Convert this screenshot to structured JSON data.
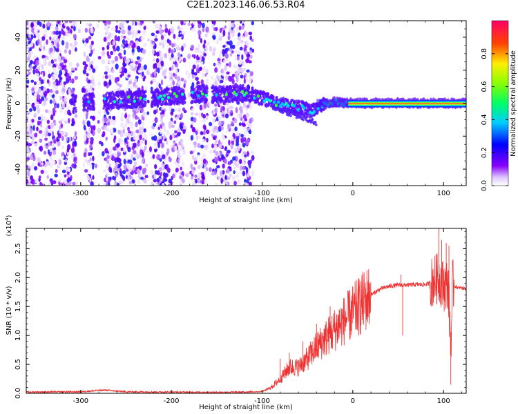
{
  "title": "C2E1.2023.146.06.53.R04",
  "chart_data": [
    {
      "type": "heatmap",
      "xlabel": "Height of straight line (km)",
      "ylabel": "Frequency (Hz)",
      "xlim": [
        -360,
        125
      ],
      "ylim": [
        -50,
        50
      ],
      "x_ticks": [
        "-300",
        "-200",
        "-100",
        "0",
        "100"
      ],
      "y_ticks": [
        "-40",
        "-20",
        "0",
        "20",
        "40"
      ],
      "colorbar": {
        "label": "Normalized spectral amplitude",
        "range": [
          0,
          1
        ],
        "ticks": [
          "0.0",
          "0.2",
          "0.4",
          "0.6",
          "0.8"
        ],
        "colors": [
          "#ffffff",
          "#7f00ff",
          "#0000ff",
          "#00ffff",
          "#00ff00",
          "#ffff00",
          "#ff0000",
          "#ff0066"
        ]
      },
      "noise_region": [
        -360,
        -120
      ],
      "gaps": [
        [
          -305,
          -297
        ],
        [
          -285,
          -275
        ],
        [
          -228,
          -222
        ],
        [
          -185,
          -178
        ],
        [
          -160,
          -155
        ]
      ],
      "trace": [
        {
          "x": -300,
          "y": 0
        },
        {
          "x": -280,
          "y": 1
        },
        {
          "x": -230,
          "y": 3
        },
        {
          "x": -185,
          "y": 5
        },
        {
          "x": -160,
          "y": 6
        },
        {
          "x": -140,
          "y": 5
        },
        {
          "x": -120,
          "y": 6
        },
        {
          "x": -100,
          "y": 3
        },
        {
          "x": -85,
          "y": 0
        },
        {
          "x": -70,
          "y": -2
        },
        {
          "x": -55,
          "y": -3
        },
        {
          "x": -45,
          "y": -5
        },
        {
          "x": -35,
          "y": -1
        },
        {
          "x": -20,
          "y": 1
        },
        {
          "x": -10,
          "y": 0
        },
        {
          "x": 0,
          "y": 0
        },
        {
          "x": 50,
          "y": 0
        },
        {
          "x": 100,
          "y": 0
        },
        {
          "x": 125,
          "y": 0
        }
      ],
      "peak_band": [
        -5,
        125
      ]
    },
    {
      "type": "line",
      "xlabel": "Height of straight line (km)",
      "ylabel": "SNR (10 * v/v)",
      "y_multiplier": "(x10",
      "y_multiplier_exp": "4",
      "xlim": [
        -360,
        125
      ],
      "ylim": [
        0,
        28500
      ],
      "x_ticks": [
        "-300",
        "-200",
        "-100",
        "0",
        "100"
      ],
      "y_ticks": [
        "0.0",
        "0.5",
        "1.0",
        "1.5",
        "2.0",
        "2.5"
      ],
      "color": "#ee3333",
      "series": [
        {
          "x": [
            -360,
            -300,
            -275,
            -250,
            -200,
            -150,
            -120,
            -100,
            -90,
            -80,
            -70,
            -60,
            -50,
            -40,
            -30,
            -20,
            -10,
            0,
            10,
            20,
            30,
            40,
            50,
            60,
            70,
            80,
            85,
            90,
            95,
            100,
            105,
            108,
            110,
            115,
            125
          ],
          "y": [
            150,
            200,
            500,
            200,
            150,
            100,
            150,
            300,
            1000,
            2500,
            4500,
            4500,
            6000,
            8000,
            9500,
            11000,
            12500,
            14000,
            15500,
            17000,
            18000,
            18500,
            18700,
            18700,
            18800,
            18800,
            19000,
            19500,
            20000,
            18500,
            19000,
            8000,
            18700,
            18300,
            18100
          ]
        }
      ],
      "spikes": [
        {
          "x": -80,
          "y": 6000
        },
        {
          "x": -70,
          "y": 7000
        },
        {
          "x": -55,
          "y": 9000
        },
        {
          "x": -40,
          "y": 12000
        },
        {
          "x": -25,
          "y": 15000
        },
        {
          "x": -15,
          "y": 14500
        },
        {
          "x": 55,
          "y": 10000
        },
        {
          "x": 53,
          "y": 20500
        },
        {
          "x": 92,
          "y": 24000
        },
        {
          "x": 95,
          "y": 28500
        },
        {
          "x": 98,
          "y": 26500
        },
        {
          "x": 103,
          "y": 26000
        },
        {
          "x": 106,
          "y": 25500
        },
        {
          "x": 108,
          "y": 1500
        }
      ]
    }
  ]
}
